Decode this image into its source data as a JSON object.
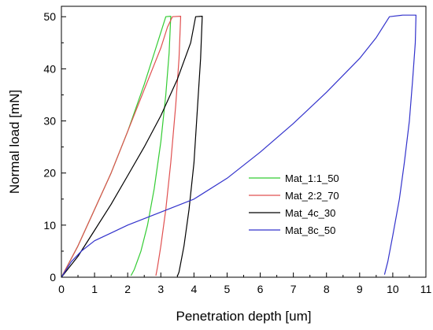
{
  "chart_data": {
    "type": "line",
    "title": "",
    "xlabel": "Penetration depth [um]",
    "ylabel": "Normal load  [mN]",
    "xlim": [
      0,
      11
    ],
    "ylim": [
      0,
      52
    ],
    "xticks": [
      0,
      1,
      2,
      3,
      4,
      5,
      6,
      7,
      8,
      9,
      10,
      11
    ],
    "yticks": [
      0,
      10,
      20,
      30,
      40,
      50
    ],
    "grid": false,
    "legend_position": "right-center",
    "series": [
      {
        "name": "Mat_1:1_50",
        "color": "#33cc33",
        "loading": [
          [
            0,
            0
          ],
          [
            0.5,
            6
          ],
          [
            1.0,
            13
          ],
          [
            1.5,
            20
          ],
          [
            2.0,
            28
          ],
          [
            2.5,
            37
          ],
          [
            2.8,
            43
          ],
          [
            3.0,
            47
          ],
          [
            3.15,
            50
          ]
        ],
        "hold": [
          [
            3.15,
            50
          ],
          [
            3.3,
            50.1
          ]
        ],
        "unloading": [
          [
            3.3,
            50.1
          ],
          [
            3.25,
            43
          ],
          [
            3.15,
            35
          ],
          [
            3.0,
            26
          ],
          [
            2.8,
            17
          ],
          [
            2.6,
            10
          ],
          [
            2.4,
            5
          ],
          [
            2.2,
            1.5
          ],
          [
            2.1,
            0.3
          ]
        ]
      },
      {
        "name": "Mat_2:2_70",
        "color": "#e05050",
        "loading": [
          [
            0,
            0
          ],
          [
            0.5,
            6
          ],
          [
            1.0,
            13
          ],
          [
            1.5,
            20
          ],
          [
            2.0,
            28
          ],
          [
            2.5,
            36
          ],
          [
            3.0,
            44
          ],
          [
            3.2,
            48
          ],
          [
            3.35,
            50
          ]
        ],
        "hold": [
          [
            3.35,
            50
          ],
          [
            3.6,
            50.1
          ]
        ],
        "unloading": [
          [
            3.6,
            50.1
          ],
          [
            3.55,
            42
          ],
          [
            3.45,
            33
          ],
          [
            3.3,
            22
          ],
          [
            3.15,
            13
          ],
          [
            3.0,
            6
          ],
          [
            2.9,
            2
          ],
          [
            2.85,
            0.3
          ]
        ]
      },
      {
        "name": "Mat_4c_30",
        "color": "#000000",
        "loading": [
          [
            0,
            0
          ],
          [
            0.5,
            4
          ],
          [
            1.0,
            9
          ],
          [
            1.5,
            14
          ],
          [
            2.0,
            19.5
          ],
          [
            2.5,
            25
          ],
          [
            3.0,
            31
          ],
          [
            3.5,
            38
          ],
          [
            3.9,
            45
          ],
          [
            4.05,
            50
          ]
        ],
        "hold": [
          [
            4.05,
            50
          ],
          [
            4.25,
            50.1
          ]
        ],
        "unloading": [
          [
            4.25,
            50.1
          ],
          [
            4.2,
            42
          ],
          [
            4.1,
            32
          ],
          [
            4.0,
            22
          ],
          [
            3.85,
            13
          ],
          [
            3.7,
            6
          ],
          [
            3.55,
            1
          ],
          [
            3.5,
            0.2
          ]
        ]
      },
      {
        "name": "Mat_8c_50",
        "color": "#3333cc",
        "loading": [
          [
            0,
            0
          ],
          [
            0.3,
            3
          ],
          [
            0.6,
            5
          ],
          [
            1.0,
            7
          ],
          [
            1.5,
            8.5
          ],
          [
            2.0,
            10
          ],
          [
            3.0,
            12.5
          ],
          [
            4.0,
            15
          ],
          [
            5.0,
            19
          ],
          [
            6.0,
            24
          ],
          [
            7.0,
            29.5
          ],
          [
            8.0,
            35.5
          ],
          [
            9.0,
            42
          ],
          [
            9.5,
            46
          ],
          [
            9.9,
            50
          ]
        ],
        "hold": [
          [
            9.9,
            50
          ],
          [
            10.3,
            50.3
          ],
          [
            10.7,
            50.3
          ]
        ],
        "unloading": [
          [
            10.7,
            50.3
          ],
          [
            10.68,
            45
          ],
          [
            10.6,
            38
          ],
          [
            10.5,
            30
          ],
          [
            10.35,
            22
          ],
          [
            10.2,
            15
          ],
          [
            10.0,
            8
          ],
          [
            9.85,
            3
          ],
          [
            9.75,
            0.5
          ]
        ]
      }
    ]
  }
}
